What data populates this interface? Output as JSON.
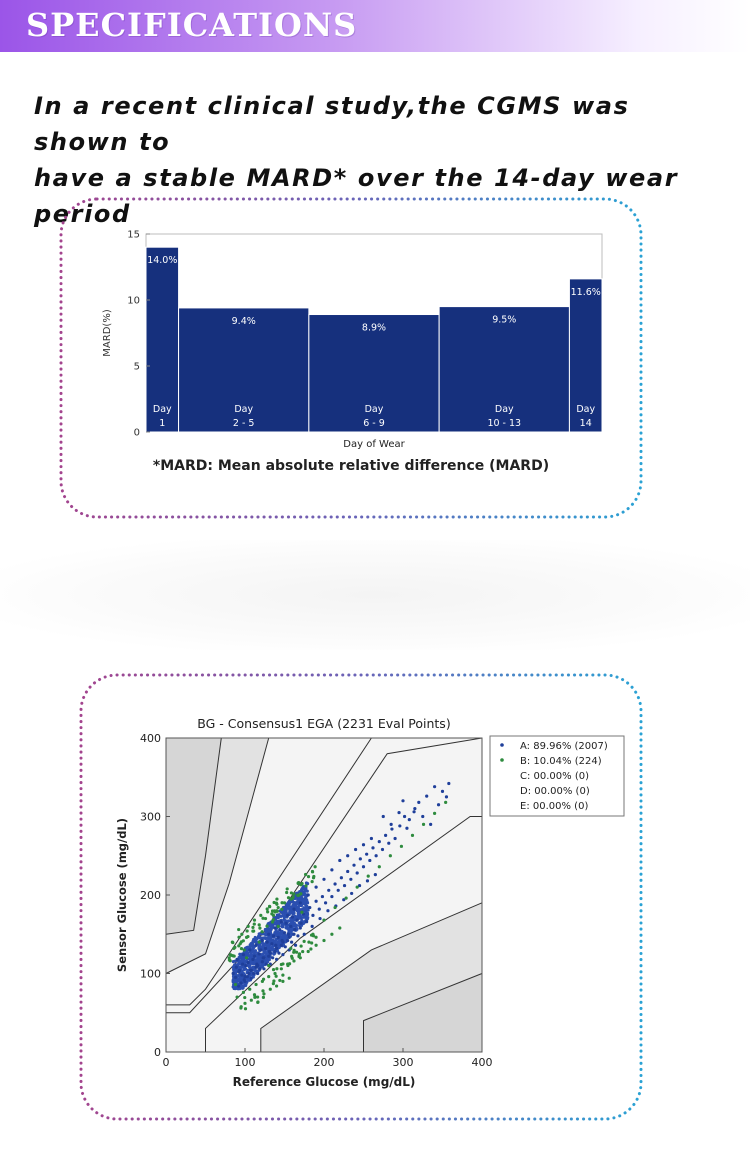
{
  "banner": {
    "title": "SPECIFICATIONS"
  },
  "headline": {
    "line1": "In a recent clinical study,the CGMS was shown to",
    "line2": "have a stable MARD* over the 14-day wear period"
  },
  "mard_footnote": "*MARD: Mean absolute relative difference (MARD)",
  "chart_data": [
    {
      "type": "bar",
      "title": "",
      "xlabel": "Day of Wear",
      "ylabel": "MARD(%)",
      "ylim": [
        0,
        15
      ],
      "yticks": [
        "0",
        "5",
        "10",
        "15"
      ],
      "bar_color": "#16307d",
      "categories": [
        {
          "day": "Day",
          "range": "1",
          "start": 0,
          "end": 1
        },
        {
          "day": "Day",
          "range": "2 - 5",
          "start": 1,
          "end": 5
        },
        {
          "day": "Day",
          "range": "6 - 9",
          "start": 5,
          "end": 9
        },
        {
          "day": "Day",
          "range": "10 - 13",
          "start": 9,
          "end": 13
        },
        {
          "day": "Day",
          "range": "14",
          "start": 13,
          "end": 14
        }
      ],
      "values": [
        14.0,
        9.4,
        8.9,
        9.5,
        11.6
      ],
      "value_labels": [
        "14.0%",
        "9.4%",
        "8.9%",
        "9.5%",
        "11.6%"
      ],
      "grid": false
    },
    {
      "type": "scatter",
      "title": "BG - Consensus1 EGA (2231 Eval Points)",
      "xlabel": "Reference Glucose (mg/dL)",
      "ylabel": "Sensor Glucose (mg/dL)",
      "xlim": [
        0,
        400
      ],
      "ylim": [
        0,
        400
      ],
      "xticks": [
        "0",
        "100",
        "200",
        "300",
        "400"
      ],
      "yticks": [
        "0",
        "100",
        "200",
        "300",
        "400"
      ],
      "legend_position": "top-right",
      "legend": [
        {
          "label": "A: 89.96% (2007)",
          "color": "#1f3f9a",
          "marker": true
        },
        {
          "label": "B: 10.04% (224)",
          "color": "#2e8b3e",
          "marker": true
        },
        {
          "label": "C: 00.00% (0)",
          "color": "",
          "marker": false
        },
        {
          "label": "D: 00.00% (0)",
          "color": "",
          "marker": false
        },
        {
          "label": "E: 00.00% (0)",
          "color": "",
          "marker": false
        }
      ],
      "zone_boundaries": [
        [
          [
            0,
            50
          ],
          [
            30,
            50
          ],
          [
            140,
            170
          ],
          [
            280,
            380
          ],
          [
            400,
            400
          ]
        ],
        [
          [
            50,
            0
          ],
          [
            50,
            30
          ],
          [
            170,
            145
          ],
          [
            385,
            300
          ],
          [
            400,
            300
          ]
        ],
        [
          [
            0,
            60
          ],
          [
            30,
            60
          ],
          [
            50,
            80
          ],
          [
            70,
            110
          ],
          [
            260,
            400
          ]
        ],
        [
          [
            120,
            0
          ],
          [
            120,
            30
          ],
          [
            260,
            130
          ],
          [
            400,
            190
          ]
        ],
        [
          [
            0,
            100
          ],
          [
            50,
            125
          ],
          [
            80,
            215
          ],
          [
            130,
            400
          ]
        ],
        [
          [
            250,
            0
          ],
          [
            250,
            40
          ],
          [
            400,
            100
          ]
        ],
        [
          [
            0,
            150
          ],
          [
            35,
            155
          ],
          [
            50,
            250
          ],
          [
            70,
            400
          ]
        ]
      ],
      "zone_A_points": [
        [
          88,
          95
        ],
        [
          92,
          102
        ],
        [
          96,
          98
        ],
        [
          101,
          110
        ],
        [
          105,
          100
        ],
        [
          110,
          118
        ],
        [
          114,
          108
        ],
        [
          118,
          125
        ],
        [
          122,
          115
        ],
        [
          126,
          132
        ],
        [
          130,
          122
        ],
        [
          134,
          138
        ],
        [
          138,
          128
        ],
        [
          142,
          146
        ],
        [
          146,
          136
        ],
        [
          150,
          152
        ],
        [
          154,
          142
        ],
        [
          158,
          160
        ],
        [
          162,
          150
        ],
        [
          166,
          168
        ],
        [
          170,
          158
        ],
        [
          174,
          176
        ],
        [
          178,
          166
        ],
        [
          182,
          184
        ],
        [
          186,
          174
        ],
        [
          190,
          192
        ],
        [
          194,
          182
        ],
        [
          198,
          198
        ],
        [
          202,
          190
        ],
        [
          206,
          206
        ],
        [
          210,
          198
        ],
        [
          214,
          214
        ],
        [
          218,
          206
        ],
        [
          222,
          222
        ],
        [
          226,
          212
        ],
        [
          230,
          230
        ],
        [
          234,
          220
        ],
        [
          238,
          238
        ],
        [
          242,
          228
        ],
        [
          246,
          246
        ],
        [
          250,
          236
        ],
        [
          254,
          252
        ],
        [
          258,
          244
        ],
        [
          262,
          260
        ],
        [
          266,
          250
        ],
        [
          270,
          268
        ],
        [
          274,
          258
        ],
        [
          278,
          276
        ],
        [
          282,
          266
        ],
        [
          286,
          284
        ],
        [
          290,
          272
        ],
        [
          296,
          288
        ],
        [
          302,
          300
        ],
        [
          308,
          296
        ],
        [
          314,
          306
        ],
        [
          320,
          318
        ],
        [
          330,
          326
        ],
        [
          340,
          338
        ],
        [
          350,
          332
        ],
        [
          358,
          342
        ],
        [
          95,
          88
        ],
        [
          99,
          92
        ],
        [
          103,
          96
        ],
        [
          107,
          104
        ],
        [
          111,
          100
        ],
        [
          115,
          112
        ],
        [
          119,
          106
        ],
        [
          123,
          120
        ],
        [
          127,
          112
        ],
        [
          131,
          128
        ],
        [
          135,
          120
        ],
        [
          139,
          136
        ],
        [
          143,
          126
        ],
        [
          147,
          142
        ],
        [
          151,
          134
        ],
        [
          155,
          150
        ],
        [
          159,
          140
        ],
        [
          163,
          156
        ],
        [
          167,
          148
        ],
        [
          171,
          164
        ],
        [
          85,
          100
        ],
        [
          89,
          108
        ],
        [
          93,
          104
        ],
        [
          97,
          112
        ],
        [
          100,
          96
        ],
        [
          104,
          114
        ],
        [
          108,
          104
        ],
        [
          112,
          122
        ],
        [
          116,
          110
        ],
        [
          120,
          130
        ],
        [
          124,
          120
        ],
        [
          128,
          140
        ],
        [
          132,
          126
        ],
        [
          136,
          148
        ],
        [
          140,
          132
        ],
        [
          144,
          156
        ],
        [
          148,
          140
        ],
        [
          152,
          164
        ],
        [
          156,
          146
        ],
        [
          160,
          172
        ],
        [
          90,
          118
        ],
        [
          98,
          124
        ],
        [
          106,
          130
        ],
        [
          114,
          136
        ],
        [
          122,
          142
        ],
        [
          130,
          150
        ],
        [
          138,
          158
        ],
        [
          146,
          166
        ],
        [
          154,
          174
        ],
        [
          162,
          182
        ],
        [
          92,
          84
        ],
        [
          100,
          90
        ],
        [
          108,
          94
        ],
        [
          116,
          100
        ],
        [
          124,
          106
        ],
        [
          132,
          112
        ],
        [
          140,
          118
        ],
        [
          148,
          124
        ],
        [
          156,
          130
        ],
        [
          164,
          136
        ],
        [
          170,
          190
        ],
        [
          180,
          200
        ],
        [
          190,
          210
        ],
        [
          200,
          220
        ],
        [
          210,
          232
        ],
        [
          220,
          244
        ],
        [
          230,
          250
        ],
        [
          240,
          258
        ],
        [
          250,
          264
        ],
        [
          260,
          272
        ],
        [
          175,
          150
        ],
        [
          185,
          160
        ],
        [
          195,
          170
        ],
        [
          205,
          180
        ],
        [
          215,
          186
        ],
        [
          225,
          194
        ],
        [
          235,
          202
        ],
        [
          245,
          212
        ],
        [
          255,
          218
        ],
        [
          265,
          226
        ],
        [
          300,
          320
        ],
        [
          315,
          310
        ],
        [
          325,
          300
        ],
        [
          335,
          290
        ],
        [
          345,
          315
        ],
        [
          355,
          325
        ],
        [
          305,
          285
        ],
        [
          295,
          305
        ],
        [
          285,
          290
        ],
        [
          275,
          300
        ]
      ],
      "zone_B_points": [
        [
          80,
          120
        ],
        [
          86,
          132
        ],
        [
          94,
          138
        ],
        [
          102,
          146
        ],
        [
          110,
          154
        ],
        [
          118,
          162
        ],
        [
          126,
          170
        ],
        [
          134,
          176
        ],
        [
          142,
          184
        ],
        [
          150,
          190
        ],
        [
          90,
          70
        ],
        [
          98,
          76
        ],
        [
          106,
          80
        ],
        [
          114,
          86
        ],
        [
          122,
          90
        ],
        [
          130,
          96
        ],
        [
          138,
          100
        ],
        [
          146,
          106
        ],
        [
          154,
          112
        ],
        [
          162,
          116
        ],
        [
          96,
          150
        ],
        [
          104,
          160
        ],
        [
          112,
          168
        ],
        [
          120,
          174
        ],
        [
          170,
          120
        ],
        [
          180,
          128
        ],
        [
          190,
          136
        ],
        [
          200,
          142
        ],
        [
          210,
          150
        ],
        [
          220,
          158
        ],
        [
          84,
          140
        ],
        [
          92,
          156
        ],
        [
          100,
          62
        ],
        [
          108,
          66
        ],
        [
          116,
          70
        ],
        [
          124,
          74
        ],
        [
          132,
          80
        ],
        [
          140,
          84
        ],
        [
          148,
          90
        ],
        [
          156,
          94
        ],
        [
          88,
          86
        ],
        [
          102,
          120
        ],
        [
          118,
          140
        ],
        [
          130,
          110
        ],
        [
          142,
          160
        ],
        [
          158,
          132
        ],
        [
          172,
          178
        ],
        [
          186,
          150
        ],
        [
          200,
          168
        ],
        [
          214,
          184
        ],
        [
          228,
          196
        ],
        [
          242,
          210
        ],
        [
          256,
          224
        ],
        [
          270,
          236
        ],
        [
          284,
          250
        ],
        [
          298,
          262
        ],
        [
          312,
          276
        ],
        [
          326,
          290
        ],
        [
          340,
          304
        ],
        [
          354,
          318
        ]
      ],
      "grid": false
    }
  ]
}
